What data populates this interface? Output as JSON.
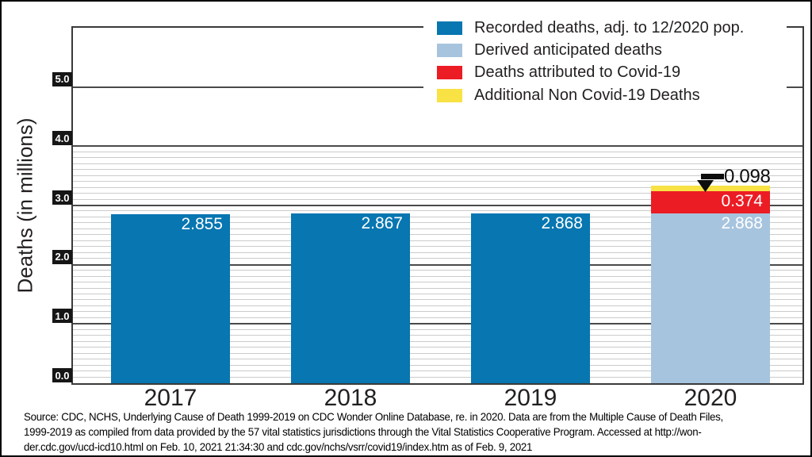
{
  "chart_data": {
    "type": "bar",
    "stacked": true,
    "title": "",
    "categories": [
      "2017",
      "2018",
      "2019",
      "2020"
    ],
    "series": [
      {
        "name": "Recorded deaths, adj. to 12/2020 pop.",
        "color": "#0776B1",
        "values": [
          2.855,
          2.867,
          2.868,
          null
        ]
      },
      {
        "name": "Derived anticipated deaths",
        "color": "#A7C4DE",
        "values": [
          null,
          null,
          null,
          2.868
        ]
      },
      {
        "name": "Deaths attributed to Covid-19",
        "color": "#EC1C24",
        "values": [
          null,
          null,
          null,
          0.374
        ]
      },
      {
        "name": "Additional Non Covid-19 Deaths",
        "color": "#F8E244",
        "values": [
          null,
          null,
          null,
          0.098
        ]
      }
    ],
    "xlabel": "",
    "ylabel": "Deaths (in millions)",
    "ylim": [
      0,
      6
    ],
    "ytick_labels": [
      "0.0",
      "1.0",
      "2.0",
      "3.0",
      "4.0",
      "5.0"
    ],
    "minor_grid_step": 0.1,
    "minor_grid_max": 3.9,
    "grid": true,
    "legend_position": "top-right",
    "annotation": {
      "label": "0.098",
      "category": "2020",
      "series": "Additional Non Covid-19 Deaths"
    }
  },
  "colors": {
    "recorded_blue": "#0776B1",
    "anticipated_light_blue": "#A7C4DE",
    "covid_red": "#EC1C24",
    "additional_yellow": "#F8E244",
    "grid_major": "#4a4a4a",
    "grid_minor": "#cbcbcb",
    "tick_box_bg": "#161616",
    "bar_value_text": "#ffffff"
  },
  "source": {
    "line1": "Source:  CDC, NCHS, Underlying Cause of Death 1999-2019 on CDC Wonder Online Database, re. in 2020.  Data are from the Multiple Cause of Death Files,",
    "line2": "1999-2019 as compiled from data provided by the 57 vital statistics jurisdictions through the Vital Statistics Cooperative Program.  Accessed at http://won-",
    "line3": "der.cdc.gov/ucd-icd10.html on Feb. 10, 2021 21:34:30 and cdc.gov/nchs/vsrr/covid19/index.htm as of Feb. 9, 2021"
  }
}
